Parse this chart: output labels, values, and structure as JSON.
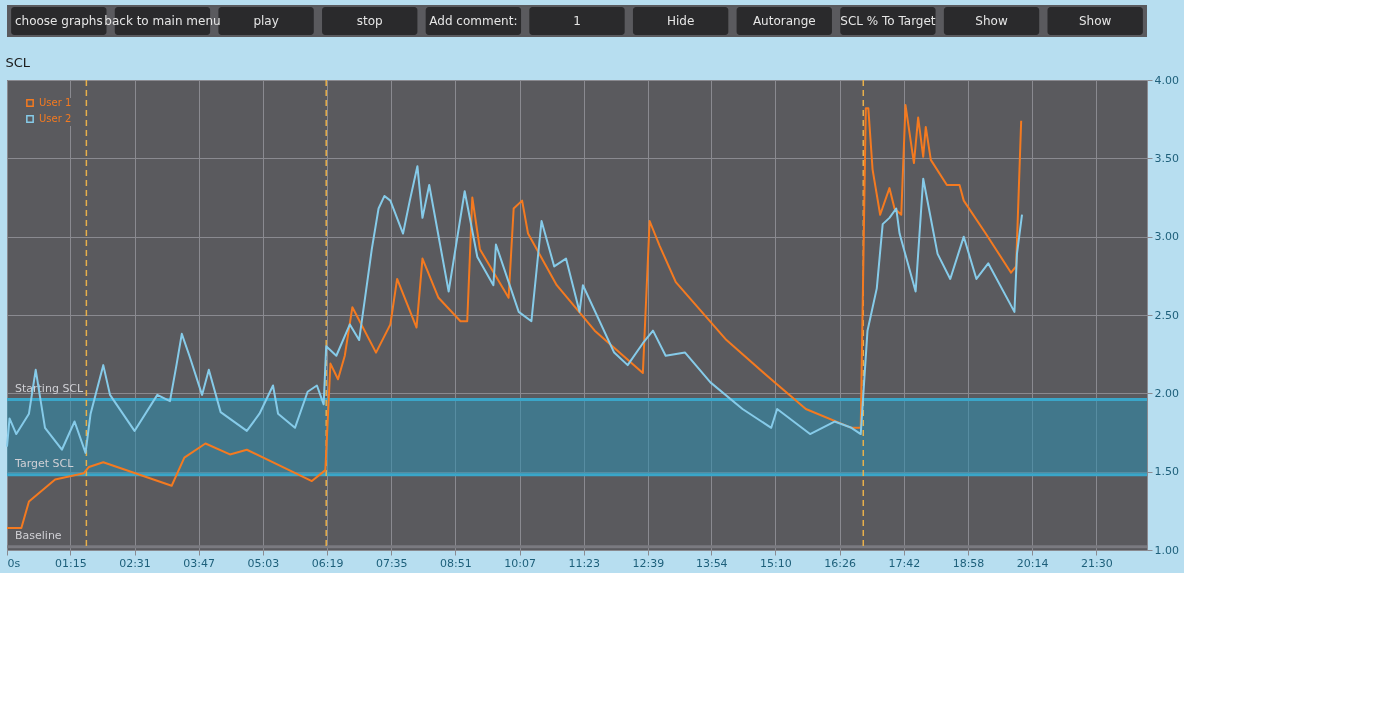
{
  "chart_data": {
    "type": "line",
    "title": "SCL",
    "annotations": [
      "choose graphs",
      "back to main menu",
      "play",
      "stop",
      "Add comment:",
      "1",
      "Hide",
      "Autorange",
      "SCL % To Target",
      "Show",
      "Show"
    ],
    "xlim": [
      0,
      1350
    ],
    "xticks": [
      {
        "value": 0,
        "label": "0s"
      },
      {
        "value": 75,
        "label": "01:15"
      },
      {
        "value": 151,
        "label": "02:31"
      },
      {
        "value": 227,
        "label": "03:47"
      },
      {
        "value": 303,
        "label": "05:03"
      },
      {
        "value": 379,
        "label": "06:19"
      },
      {
        "value": 455,
        "label": "07:35"
      },
      {
        "value": 531,
        "label": "08:51"
      },
      {
        "value": 607,
        "label": "10:07"
      },
      {
        "value": 683,
        "label": "11:23"
      },
      {
        "value": 759,
        "label": "12:39"
      },
      {
        "value": 834,
        "label": "13:54"
      },
      {
        "value": 910,
        "label": "15:10"
      },
      {
        "value": 986,
        "label": "16:26"
      },
      {
        "value": 1062,
        "label": "17:42"
      },
      {
        "value": 1138,
        "label": "18:58"
      },
      {
        "value": 1214,
        "label": "20:14"
      },
      {
        "value": 1290,
        "label": "21:30"
      }
    ],
    "ylim": [
      1,
      4
    ],
    "yticks": [
      {
        "value": 1,
        "label": "1.00"
      },
      {
        "value": 1.5,
        "label": "1.50"
      },
      {
        "value": 2,
        "label": "2.00"
      },
      {
        "value": 2.5,
        "label": "2.50"
      },
      {
        "value": 3,
        "label": "3.00"
      },
      {
        "value": 3.5,
        "label": "3.50"
      },
      {
        "value": 4,
        "label": "4.00"
      }
    ],
    "grid": true,
    "legend": "top left",
    "marker": "none",
    "line_style": "solid",
    "ref_lines": [
      {
        "axis": "y",
        "value": 1.96,
        "label": "Starting SCL",
        "color": "#3aa6c9"
      },
      {
        "axis": "y",
        "value": 1.48,
        "label": "Target SCL",
        "color": "#3aa6c9"
      },
      {
        "axis": "y",
        "value": 1.02,
        "label": "Baseline",
        "color": "#7a7a80"
      },
      {
        "axis": "x",
        "value": 94,
        "color": "#e8b04a",
        "line_style": "dashed"
      },
      {
        "axis": "x",
        "value": 378,
        "color": "#e8b04a",
        "line_style": "dashed"
      },
      {
        "axis": "x",
        "value": 1014,
        "color": "#e8b04a",
        "line_style": "dashed"
      }
    ],
    "bands": [
      {
        "axis": "y",
        "from": 1.48,
        "to": 1.96,
        "color": "#2e8fb0"
      }
    ],
    "series": [
      {
        "name": "User 1",
        "color": "#f47a20",
        "x": [
          0,
          17,
          26,
          57,
          91,
          97,
          114,
          195,
          210,
          235,
          264,
          284,
          361,
          377,
          383,
          392,
          400,
          409,
          437,
          454,
          462,
          485,
          492,
          511,
          537,
          545,
          551,
          560,
          594,
          600,
          610,
          617,
          651,
          696,
          753,
          761,
          773,
          792,
          852,
          909,
          946,
          1000,
          1011,
          1017,
          1020,
          1025,
          1034,
          1045,
          1051,
          1059,
          1064,
          1074,
          1079,
          1085,
          1088,
          1094,
          1113,
          1128,
          1133,
          1159,
          1189,
          1195,
          1201
        ],
        "values": [
          1.14,
          1.14,
          1.31,
          1.45,
          1.49,
          1.53,
          1.56,
          1.41,
          1.59,
          1.68,
          1.61,
          1.64,
          1.44,
          1.51,
          2.19,
          2.09,
          2.24,
          2.55,
          2.26,
          2.44,
          2.73,
          2.42,
          2.86,
          2.61,
          2.46,
          2.46,
          3.25,
          2.92,
          2.61,
          3.18,
          3.23,
          3.02,
          2.69,
          2.4,
          2.13,
          3.1,
          2.94,
          2.71,
          2.34,
          2.07,
          1.9,
          1.78,
          1.78,
          3.82,
          3.82,
          3.43,
          3.14,
          3.31,
          3.18,
          3.14,
          3.84,
          3.47,
          3.76,
          3.51,
          3.7,
          3.49,
          3.33,
          3.33,
          3.23,
          3.02,
          2.77,
          2.81,
          3.74
        ]
      },
      {
        "name": "User 2",
        "color": "#86cbe9",
        "x": [
          0,
          3,
          11,
          26,
          34,
          45,
          65,
          80,
          93,
          99,
          114,
          122,
          151,
          178,
          193,
          201,
          207,
          216,
          231,
          239,
          253,
          284,
          299,
          315,
          321,
          341,
          356,
          367,
          375,
          378,
          390,
          406,
          417,
          424,
          432,
          440,
          447,
          454,
          469,
          477,
          486,
          492,
          500,
          523,
          542,
          557,
          576,
          579,
          606,
          621,
          633,
          648,
          662,
          678,
          682,
          719,
          735,
          753,
          765,
          780,
          803,
          833,
          871,
          905,
          912,
          951,
          980,
          1000,
          1011,
          1019,
          1030,
          1037,
          1045,
          1053,
          1057,
          1076,
          1085,
          1102,
          1117,
          1133,
          1148,
          1162,
          1193,
          1196,
          1202
        ],
        "values": [
          1.66,
          1.84,
          1.74,
          1.87,
          2.15,
          1.78,
          1.64,
          1.82,
          1.62,
          1.87,
          2.18,
          1.99,
          1.76,
          1.99,
          1.95,
          2.19,
          2.38,
          2.24,
          1.99,
          2.15,
          1.88,
          1.76,
          1.87,
          2.05,
          1.87,
          1.78,
          2.01,
          2.05,
          1.93,
          2.3,
          2.24,
          2.44,
          2.34,
          2.61,
          2.92,
          3.18,
          3.26,
          3.23,
          3.02,
          3.23,
          3.45,
          3.12,
          3.33,
          2.65,
          3.29,
          2.87,
          2.69,
          2.95,
          2.52,
          2.46,
          3.1,
          2.81,
          2.86,
          2.52,
          2.69,
          2.26,
          2.18,
          2.32,
          2.4,
          2.24,
          2.26,
          2.07,
          1.9,
          1.78,
          1.9,
          1.74,
          1.82,
          1.78,
          1.74,
          2.4,
          2.67,
          3.08,
          3.12,
          3.18,
          3.02,
          2.65,
          3.37,
          2.89,
          2.73,
          3.0,
          2.73,
          2.83,
          2.52,
          2.89,
          3.14
        ]
      }
    ]
  }
}
